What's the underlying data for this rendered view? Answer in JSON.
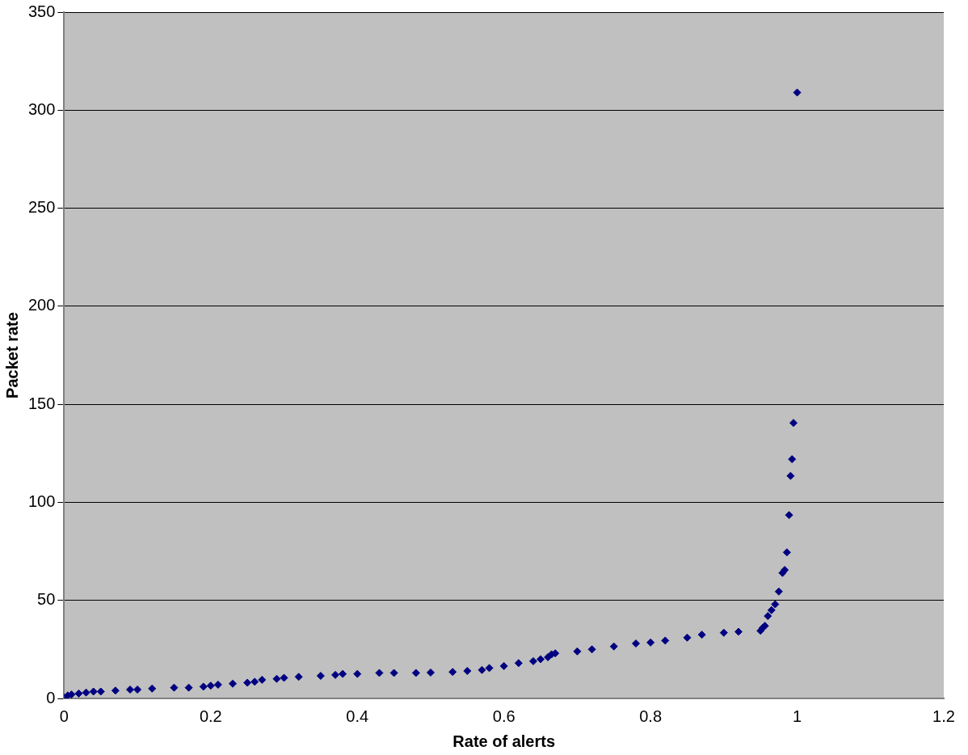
{
  "chart_data": {
    "type": "scatter",
    "xlabel": "Rate of alerts",
    "ylabel": "Packet rate",
    "marker": "diamond",
    "grid": "y",
    "legend": false,
    "xlim": [
      0,
      1.2
    ],
    "xticks": [
      0,
      0.2,
      0.4,
      0.6,
      0.8,
      1,
      1.2
    ],
    "ylim": [
      0,
      350
    ],
    "yticks": [
      0,
      50,
      100,
      150,
      200,
      250,
      300,
      350
    ],
    "series": [
      {
        "color": "#000080",
        "x": [
          0,
          0.005,
          0.01,
          0.02,
          0.03,
          0.04,
          0.05,
          0.07,
          0.09,
          0.1,
          0.12,
          0.15,
          0.17,
          0.19,
          0.2,
          0.21,
          0.23,
          0.25,
          0.26,
          0.27,
          0.29,
          0.3,
          0.32,
          0.35,
          0.37,
          0.38,
          0.4,
          0.43,
          0.45,
          0.48,
          0.5,
          0.53,
          0.55,
          0.57,
          0.58,
          0.6,
          0.62,
          0.64,
          0.65,
          0.66,
          0.665,
          0.67,
          0.7,
          0.72,
          0.75,
          0.78,
          0.8,
          0.82,
          0.85,
          0.87,
          0.9,
          0.92,
          0.95,
          0.953,
          0.956,
          0.96,
          0.965,
          0.97,
          0.975,
          0.98,
          0.983,
          0.986,
          0.989,
          0.991,
          0.993,
          0.995,
          1
        ],
        "values": [
          0.5,
          1.5,
          2,
          2.5,
          3,
          3.5,
          3.5,
          4,
          4.5,
          4.5,
          5,
          5.5,
          5.5,
          6,
          6.5,
          7,
          7.5,
          8,
          8.5,
          9.5,
          10,
          10.5,
          11,
          11.5,
          12,
          12.5,
          12.5,
          13,
          13,
          13,
          13.2,
          13.5,
          14,
          14.5,
          15.5,
          16.5,
          18,
          19,
          20,
          21,
          22.5,
          23,
          24,
          25,
          26.5,
          28,
          28.5,
          29.5,
          31,
          32.5,
          33.5,
          34,
          34.5,
          36,
          37,
          42,
          45,
          48,
          54.5,
          64,
          65.5,
          74.5,
          93.5,
          113.5,
          122,
          140.5,
          309
        ]
      }
    ]
  }
}
